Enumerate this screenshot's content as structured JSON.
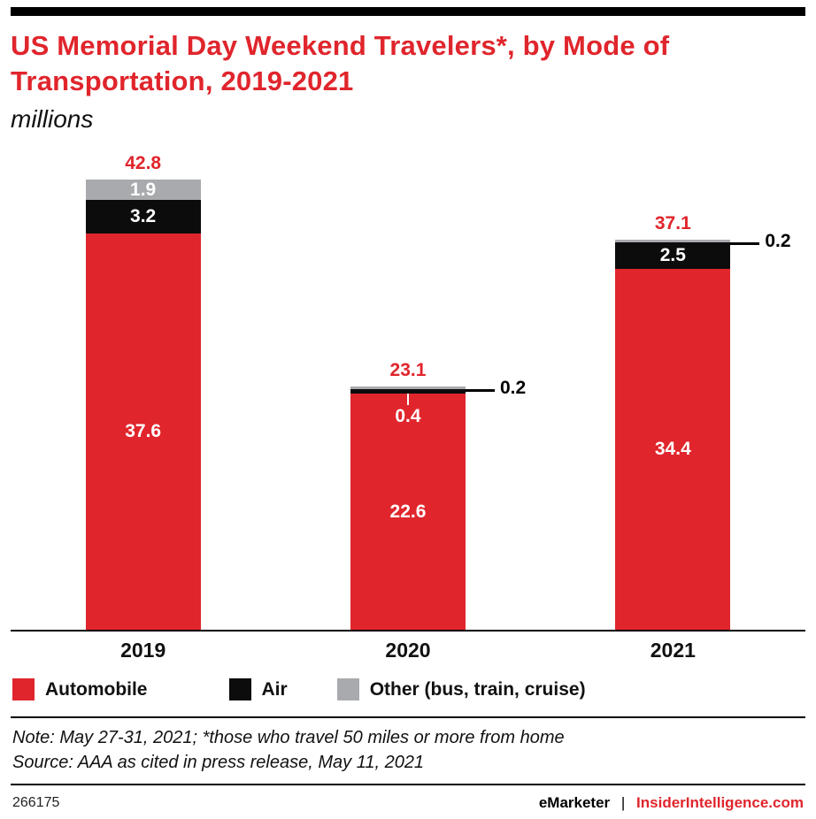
{
  "header": {
    "title": "US Memorial Day Weekend Travelers*, by Mode of Transportation, 2019-2021",
    "subtitle": "millions"
  },
  "chart_data": {
    "type": "bar",
    "stacked": true,
    "title": "US Memorial Day Weekend Travelers*, by Mode of Transportation, 2019-2021",
    "units": "millions",
    "categories": [
      "2019",
      "2020",
      "2021"
    ],
    "series": [
      {
        "name": "Automobile",
        "color": "#e0252c",
        "values": [
          37.6,
          22.6,
          34.4
        ]
      },
      {
        "name": "Air",
        "color": "#0c0c0c",
        "values": [
          3.2,
          0.4,
          2.5
        ]
      },
      {
        "name": "Other (bus, train, cruise)",
        "color": "#a8aaad",
        "values": [
          1.9,
          0.2,
          0.2
        ]
      }
    ],
    "totals": [
      42.8,
      23.1,
      37.1
    ],
    "xlabel": "",
    "ylabel": "millions",
    "ylim": [
      0,
      45.8
    ],
    "grid": false,
    "legend_position": "bottom"
  },
  "legend": {
    "items": [
      {
        "label": "Automobile",
        "color": "#e0252c"
      },
      {
        "label": "Air",
        "color": "#0c0c0c"
      },
      {
        "label": "Other (bus, train, cruise)",
        "color": "#a8aaad"
      }
    ]
  },
  "notes": {
    "note": "Note: May 27-31, 2021; *those who travel 50 miles or more from home",
    "source": "Source: AAA as cited in press release, May 11, 2021"
  },
  "footer": {
    "chart_id": "266175",
    "brand": "eMarketer",
    "divider": "|",
    "site": "InsiderIntelligence.com"
  }
}
